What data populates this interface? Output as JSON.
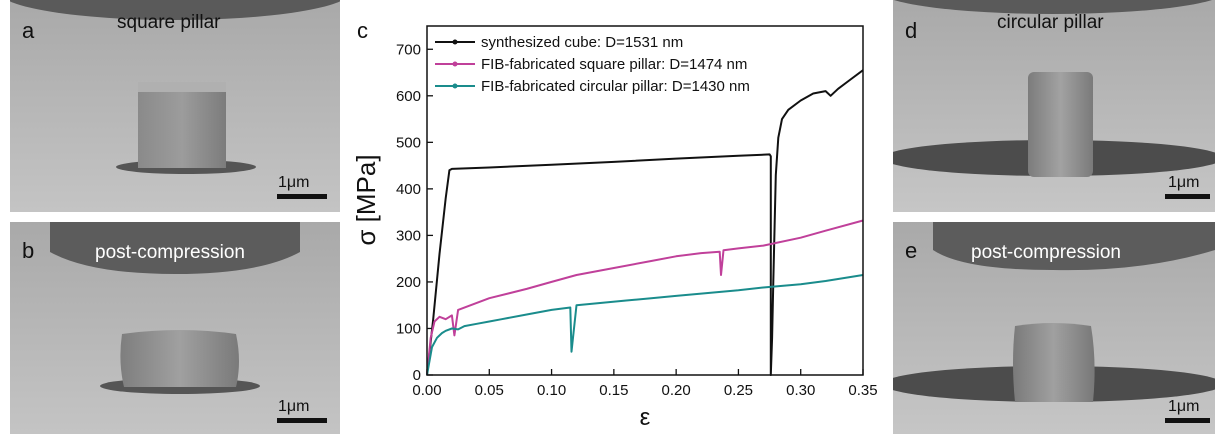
{
  "panels": {
    "a": {
      "letter": "a",
      "title": "square pillar",
      "scale": "1μm"
    },
    "b": {
      "letter": "b",
      "title": "post-compression",
      "scale": "1μm"
    },
    "d": {
      "letter": "d",
      "title": "circular pillar",
      "scale": "1μm"
    },
    "e": {
      "letter": "e",
      "title": "post-compression",
      "scale": "1μm"
    }
  },
  "chart_data": {
    "type": "line",
    "panel_letter": "c",
    "xlabel": "ε",
    "ylabel": "σ [MPa]",
    "xlim": [
      0,
      0.35
    ],
    "ylim": [
      0,
      750
    ],
    "xticks": [
      "0.00",
      "0.05",
      "0.10",
      "0.15",
      "0.20",
      "0.25",
      "0.30",
      "0.35"
    ],
    "yticks": [
      "0",
      "100",
      "200",
      "300",
      "400",
      "500",
      "600",
      "700"
    ],
    "grid": false,
    "legend_position": "top-left",
    "series": [
      {
        "name": "synthesized cube: D=1531 nm",
        "color": "#111111",
        "points": [
          [
            0.0,
            0
          ],
          [
            0.005,
            120
          ],
          [
            0.01,
            260
          ],
          [
            0.015,
            380
          ],
          [
            0.018,
            440
          ],
          [
            0.02,
            443
          ],
          [
            0.05,
            446
          ],
          [
            0.1,
            452
          ],
          [
            0.15,
            458
          ],
          [
            0.2,
            465
          ],
          [
            0.25,
            471
          ],
          [
            0.275,
            474
          ],
          [
            0.276,
            470
          ],
          [
            0.276,
            0
          ],
          [
            0.277,
            80
          ],
          [
            0.278,
            200
          ],
          [
            0.279,
            320
          ],
          [
            0.28,
            430
          ],
          [
            0.282,
            510
          ],
          [
            0.285,
            550
          ],
          [
            0.29,
            570
          ],
          [
            0.3,
            590
          ],
          [
            0.31,
            605
          ],
          [
            0.32,
            610
          ],
          [
            0.324,
            600
          ],
          [
            0.33,
            615
          ],
          [
            0.34,
            635
          ],
          [
            0.35,
            655
          ]
        ]
      },
      {
        "name": "FIB-fabricated square pillar: D=1474 nm",
        "color": "#c0409a",
        "points": [
          [
            0.0,
            0
          ],
          [
            0.003,
            80
          ],
          [
            0.006,
            115
          ],
          [
            0.01,
            125
          ],
          [
            0.015,
            120
          ],
          [
            0.02,
            128
          ],
          [
            0.022,
            85
          ],
          [
            0.025,
            140
          ],
          [
            0.05,
            165
          ],
          [
            0.08,
            185
          ],
          [
            0.1,
            200
          ],
          [
            0.12,
            215
          ],
          [
            0.15,
            230
          ],
          [
            0.18,
            245
          ],
          [
            0.2,
            255
          ],
          [
            0.22,
            262
          ],
          [
            0.235,
            265
          ],
          [
            0.236,
            215
          ],
          [
            0.238,
            268
          ],
          [
            0.25,
            272
          ],
          [
            0.27,
            278
          ],
          [
            0.3,
            295
          ],
          [
            0.32,
            310
          ],
          [
            0.35,
            332
          ]
        ]
      },
      {
        "name": "FIB-fabricated circular pillar: D=1430 nm",
        "color": "#1a8c8c",
        "points": [
          [
            0.0,
            0
          ],
          [
            0.004,
            60
          ],
          [
            0.008,
            80
          ],
          [
            0.012,
            90
          ],
          [
            0.015,
            95
          ],
          [
            0.02,
            100
          ],
          [
            0.025,
            98
          ],
          [
            0.03,
            105
          ],
          [
            0.04,
            110
          ],
          [
            0.05,
            115
          ],
          [
            0.06,
            120
          ],
          [
            0.08,
            130
          ],
          [
            0.1,
            140
          ],
          [
            0.115,
            145
          ],
          [
            0.116,
            50
          ],
          [
            0.12,
            150
          ],
          [
            0.14,
            155
          ],
          [
            0.16,
            160
          ],
          [
            0.18,
            165
          ],
          [
            0.2,
            170
          ],
          [
            0.22,
            175
          ],
          [
            0.25,
            182
          ],
          [
            0.27,
            188
          ],
          [
            0.3,
            195
          ],
          [
            0.32,
            202
          ],
          [
            0.35,
            215
          ]
        ]
      }
    ]
  }
}
